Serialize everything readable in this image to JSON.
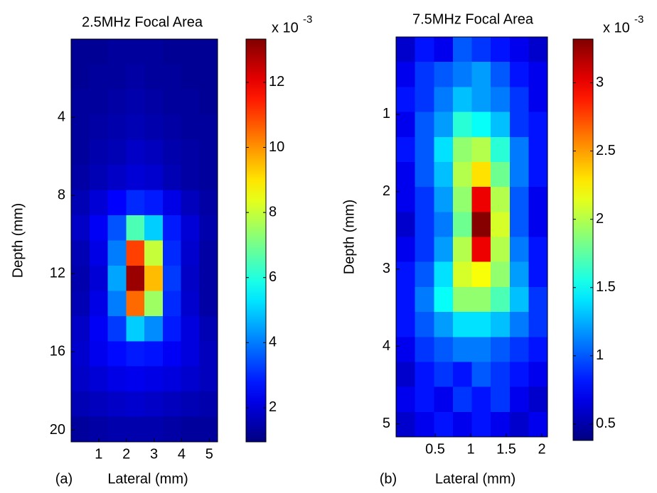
{
  "chart_data": [
    {
      "type": "heatmap",
      "title": "2.5MHz Focal Area",
      "xlabel": "Lateral (mm)",
      "ylabel": "Depth (mm)",
      "panel_label": "(a)",
      "xlim": [
        0,
        5.3
      ],
      "ylim": [
        0,
        20.6
      ],
      "y_reversed": true,
      "xticks": [
        1,
        2,
        3,
        4,
        5
      ],
      "yticks": [
        4,
        8,
        12,
        16,
        20
      ],
      "colormap": "jet",
      "clim": [
        0.95,
        13.33
      ],
      "colorbar_ticks": [
        2,
        4,
        6,
        8,
        10,
        12
      ],
      "colorbar_title": "x 10",
      "colorbar_exponent": "-3",
      "z": [
        [
          1.2,
          1.2,
          1.3,
          1.3,
          1.3,
          1.2,
          1.2,
          1.2
        ],
        [
          1.2,
          1.3,
          1.3,
          1.4,
          1.3,
          1.3,
          1.2,
          1.2
        ],
        [
          1.3,
          1.3,
          1.4,
          1.5,
          1.4,
          1.3,
          1.3,
          1.2
        ],
        [
          1.3,
          1.4,
          1.5,
          1.6,
          1.5,
          1.4,
          1.3,
          1.3
        ],
        [
          1.3,
          1.5,
          1.6,
          1.8,
          1.7,
          1.5,
          1.4,
          1.3
        ],
        [
          1.4,
          1.6,
          1.8,
          2.0,
          1.9,
          1.6,
          1.4,
          1.3
        ],
        [
          1.6,
          2.0,
          2.5,
          3.0,
          2.8,
          2.2,
          1.7,
          1.4
        ],
        [
          1.8,
          2.4,
          3.5,
          6.5,
          5.0,
          2.8,
          2.0,
          1.5
        ],
        [
          1.6,
          2.2,
          4.0,
          11.0,
          8.0,
          3.0,
          1.9,
          1.4
        ],
        [
          1.5,
          2.0,
          4.5,
          13.0,
          9.5,
          3.2,
          1.8,
          1.4
        ],
        [
          1.6,
          2.2,
          4.0,
          10.5,
          7.5,
          3.0,
          1.9,
          1.4
        ],
        [
          1.8,
          2.4,
          3.2,
          5.0,
          4.2,
          2.8,
          2.1,
          1.6
        ],
        [
          1.9,
          2.3,
          2.6,
          2.8,
          2.7,
          2.4,
          2.1,
          1.7
        ],
        [
          1.8,
          2.0,
          2.2,
          2.3,
          2.2,
          2.1,
          1.9,
          1.7
        ],
        [
          1.6,
          1.7,
          1.8,
          1.9,
          1.8,
          1.7,
          1.6,
          1.5
        ],
        [
          1.3,
          1.4,
          1.5,
          1.5,
          1.5,
          1.4,
          1.3,
          1.3
        ]
      ]
    },
    {
      "type": "heatmap",
      "title": "7.5MHz Focal Area",
      "xlabel": "Lateral (mm)",
      "ylabel": "Depth (mm)",
      "panel_label": "(b)",
      "xlim": [
        -0.05,
        2.08
      ],
      "ylim": [
        0,
        5.17
      ],
      "y_reversed": true,
      "xticks": [
        0.5,
        1,
        1.5,
        2
      ],
      "yticks": [
        1,
        2,
        3,
        4,
        5
      ],
      "colormap": "jet",
      "clim": [
        0.38,
        3.32
      ],
      "colorbar_ticks": [
        0.5,
        1,
        1.5,
        2,
        2.5,
        3
      ],
      "colorbar_title": "x 10",
      "colorbar_exponent": "-3",
      "z": [
        [
          0.6,
          0.8,
          0.7,
          1.0,
          0.9,
          0.8,
          0.7,
          0.6
        ],
        [
          0.7,
          0.9,
          1.0,
          1.1,
          1.2,
          1.0,
          0.8,
          0.7
        ],
        [
          0.8,
          0.9,
          1.1,
          1.3,
          1.2,
          1.1,
          0.9,
          0.7
        ],
        [
          0.7,
          1.0,
          1.2,
          1.6,
          1.5,
          1.3,
          0.9,
          0.8
        ],
        [
          0.8,
          1.0,
          1.4,
          1.9,
          2.0,
          1.6,
          1.1,
          0.8
        ],
        [
          0.7,
          1.0,
          1.3,
          2.0,
          2.3,
          1.8,
          1.1,
          0.8
        ],
        [
          0.7,
          0.9,
          1.2,
          1.9,
          3.0,
          2.0,
          1.0,
          0.7
        ],
        [
          0.6,
          0.9,
          1.1,
          1.8,
          3.3,
          2.1,
          1.0,
          0.7
        ],
        [
          0.7,
          0.9,
          1.2,
          2.0,
          3.0,
          2.0,
          1.1,
          0.8
        ],
        [
          0.8,
          1.0,
          1.4,
          2.1,
          2.2,
          1.9,
          1.2,
          0.8
        ],
        [
          0.8,
          1.1,
          1.5,
          1.9,
          1.9,
          1.7,
          1.3,
          0.9
        ],
        [
          0.8,
          1.0,
          1.2,
          1.4,
          1.4,
          1.3,
          1.1,
          0.9
        ],
        [
          0.7,
          0.9,
          1.0,
          1.1,
          1.1,
          1.0,
          0.9,
          0.8
        ],
        [
          0.6,
          0.8,
          0.9,
          0.8,
          1.0,
          0.9,
          0.8,
          0.7
        ],
        [
          0.7,
          0.8,
          0.7,
          0.9,
          0.8,
          0.9,
          0.7,
          0.6
        ],
        [
          0.6,
          0.7,
          0.8,
          0.7,
          0.8,
          0.7,
          0.6,
          0.7
        ]
      ]
    }
  ]
}
